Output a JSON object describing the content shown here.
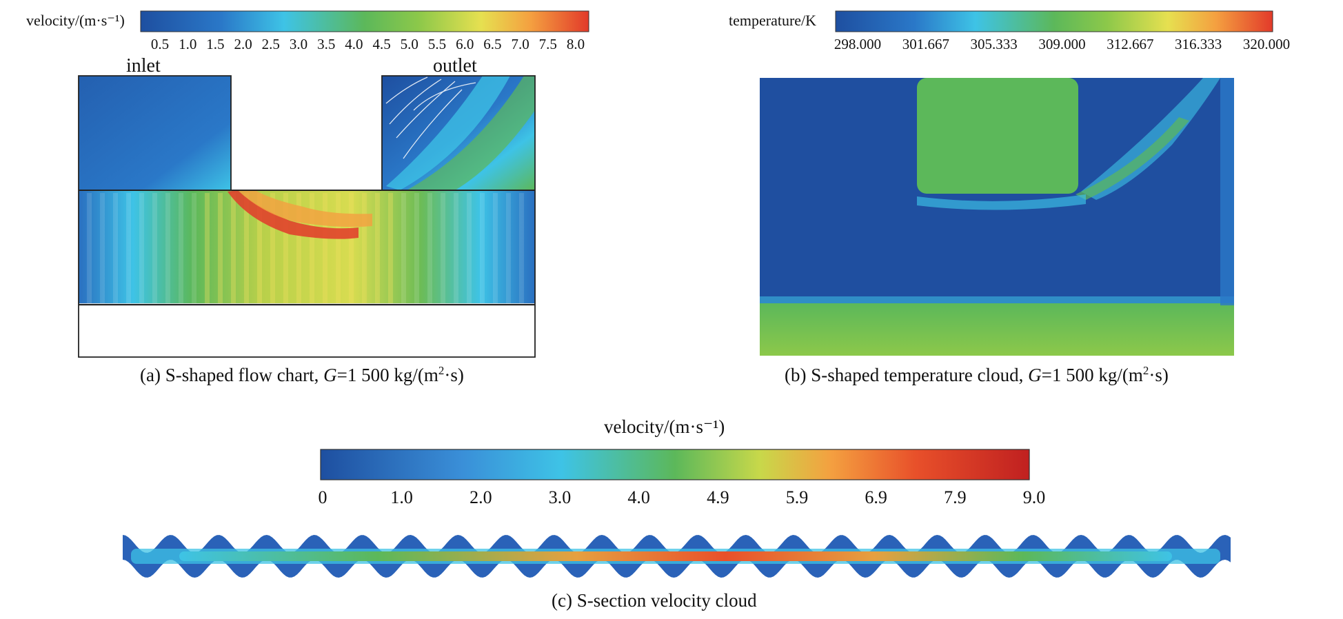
{
  "panel_a": {
    "colorbar_title": "velocity/(m·s⁻¹)",
    "ticks": [
      "0.5",
      "1.0",
      "1.5",
      "2.0",
      "2.5",
      "3.0",
      "3.5",
      "4.0",
      "4.5",
      "5.0",
      "5.5",
      "6.0",
      "6.5",
      "7.0",
      "7.5",
      "8.0"
    ],
    "inlet_label": "inlet",
    "outlet_label": "outlet",
    "caption_prefix": "(a) S-shaped flow chart, ",
    "caption_var": "G",
    "caption_eq": "=1 500 kg/(m",
    "caption_sup": "2",
    "caption_end": "·s)"
  },
  "panel_b": {
    "colorbar_title": "temperature/K",
    "ticks": [
      "298.000",
      "301.667",
      "305.333",
      "309.000",
      "312.667",
      "316.333",
      "320.000"
    ],
    "caption_prefix": "(b) S-shaped temperature cloud, ",
    "caption_var": "G",
    "caption_eq": "=1 500 kg/(m",
    "caption_sup": "2",
    "caption_end": "·s)"
  },
  "panel_c": {
    "colorbar_title": "velocity/(m·s⁻¹)",
    "ticks": [
      "0",
      "1.0",
      "2.0",
      "3.0",
      "4.0",
      "4.9",
      "5.9",
      "6.9",
      "7.9",
      "9.0"
    ],
    "caption": "(c) S-section velocity cloud"
  },
  "colors": {
    "map_low": "#1e4fa0",
    "map_cyan": "#3ec3e6",
    "map_green": "#5cb85a",
    "map_yellow": "#e6e050",
    "map_orange": "#f4a040",
    "map_high": "#e23a2a"
  }
}
